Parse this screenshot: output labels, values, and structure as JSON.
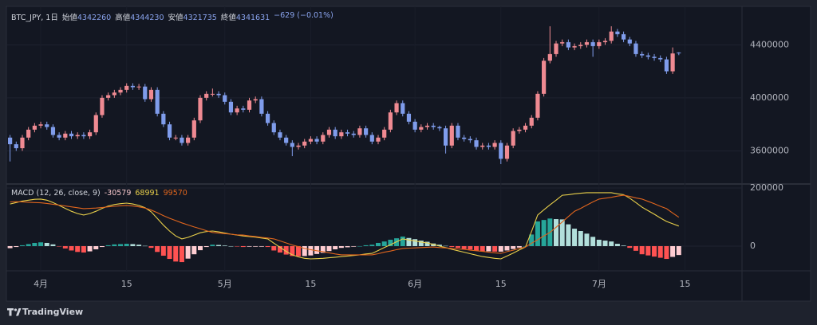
{
  "chart_data": [
    {
      "type": "candlestick",
      "symbol": "BTC_JPY, 1日",
      "ohlc_labels": [
        "始値",
        "高値",
        "安値",
        "終値"
      ],
      "change_text": "−629 (−0.01%)",
      "up_color": "#ef8a92",
      "down_color": "#7f9ceb",
      "grid": true,
      "x": [
        -5,
        -4,
        -3,
        -2,
        -1,
        0,
        1,
        2,
        3,
        4,
        5,
        6,
        7,
        8,
        9,
        10,
        11,
        12,
        13,
        14,
        15,
        16,
        17,
        18,
        19,
        20,
        21,
        22,
        23,
        24,
        25,
        26,
        27,
        28,
        29,
        30,
        31,
        32,
        33,
        34,
        35,
        36,
        37,
        38,
        39,
        40,
        41,
        42,
        43,
        44,
        45,
        46,
        47,
        48,
        49,
        50,
        51,
        52,
        53,
        54,
        55,
        56,
        57,
        58,
        59,
        60,
        61,
        62,
        63,
        64,
        65,
        66,
        67,
        68,
        69,
        70,
        71,
        72,
        73,
        74,
        75,
        76,
        77,
        78,
        79,
        80,
        81,
        82,
        83,
        84,
        85,
        86,
        87,
        88,
        89,
        90,
        91,
        92,
        93,
        94,
        95,
        96,
        97,
        98,
        99,
        100,
        101,
        102,
        103,
        104
      ],
      "xlim": [
        -5.6,
        114.3
      ],
      "xticks": [
        {
          "value": 0,
          "label": "4月"
        },
        {
          "value": 14,
          "label": "15"
        },
        {
          "value": 30,
          "label": "5月"
        },
        {
          "value": 44,
          "label": "15"
        },
        {
          "value": 61,
          "label": "6月"
        },
        {
          "value": 75,
          "label": "15"
        },
        {
          "value": 91,
          "label": "7月"
        },
        {
          "value": 105,
          "label": "15"
        }
      ],
      "ylim": [
        3350000,
        4690000
      ],
      "yticks": [
        3600000,
        4000000,
        4400000
      ],
      "open": [
        3700000,
        3650000,
        3620000,
        3700000,
        3760000,
        3790000,
        3800000,
        3780000,
        3720000,
        3700000,
        3730000,
        3710000,
        3720000,
        3710000,
        3740000,
        3870000,
        4000000,
        4020000,
        4040000,
        4060000,
        4090000,
        4080000,
        4085000,
        3990000,
        4060000,
        3880000,
        3800000,
        3700000,
        3700000,
        3660000,
        3700000,
        3830000,
        4000000,
        4030000,
        4030000,
        4020000,
        3970000,
        3890000,
        3920000,
        3910000,
        3980000,
        3990000,
        3880000,
        3810000,
        3740000,
        3700000,
        3660000,
        3630000,
        3640000,
        3670000,
        3690000,
        3670000,
        3720000,
        3760000,
        3710000,
        3740000,
        3730000,
        3720000,
        3770000,
        3720000,
        3670000,
        3700000,
        3760000,
        3890000,
        3960000,
        3880000,
        3820000,
        3760000,
        3780000,
        3790000,
        3780000,
        3770000,
        3640000,
        3790000,
        3700000,
        3690000,
        3680000,
        3630000,
        3640000,
        3630000,
        3660000,
        3540000,
        3640000,
        3750000,
        3760000,
        3790000,
        3850000,
        4030000,
        4280000,
        4330000,
        4410000,
        4420000,
        4380000,
        4390000,
        4400000,
        4420000,
        4390000,
        4420000,
        4430000,
        4500000,
        4480000,
        4440000,
        4410000,
        4330000,
        4320000,
        4310000,
        4300000,
        4290000,
        4200000,
        4342260
      ],
      "high": [
        3720000,
        3670000,
        3720000,
        3780000,
        3810000,
        3820000,
        3820000,
        3800000,
        3740000,
        3750000,
        3750000,
        3740000,
        3740000,
        3760000,
        3890000,
        4020000,
        4040000,
        4060000,
        4080000,
        4110000,
        4110000,
        4105000,
        4105000,
        4080000,
        4080000,
        3900000,
        3820000,
        3720000,
        3720000,
        3720000,
        3850000,
        4020000,
        4050000,
        4070000,
        4050000,
        4040000,
        3990000,
        3940000,
        3940000,
        4000000,
        4010000,
        4010000,
        3900000,
        3830000,
        3760000,
        3720000,
        3680000,
        3660000,
        3690000,
        3710000,
        3710000,
        3740000,
        3780000,
        3780000,
        3760000,
        3760000,
        3750000,
        3790000,
        3790000,
        3740000,
        3720000,
        3780000,
        3910000,
        3980000,
        3980000,
        3900000,
        3840000,
        3800000,
        3810000,
        3810000,
        3790000,
        3790000,
        3810000,
        3810000,
        3720000,
        3710000,
        3700000,
        3660000,
        3660000,
        3680000,
        3680000,
        3660000,
        3770000,
        3780000,
        3810000,
        3870000,
        4050000,
        4300000,
        4540000,
        4430000,
        4440000,
        4440000,
        4410000,
        4420000,
        4440000,
        4440000,
        4440000,
        4450000,
        4540000,
        4520000,
        4500000,
        4460000,
        4430000,
        4350000,
        4340000,
        4330000,
        4320000,
        4310000,
        4380000,
        4344230
      ],
      "low": [
        3520000,
        3600000,
        3600000,
        3680000,
        3740000,
        3770000,
        3760000,
        3700000,
        3680000,
        3680000,
        3690000,
        3690000,
        3690000,
        3690000,
        3720000,
        3850000,
        3980000,
        4000000,
        4020000,
        4040000,
        4060000,
        4060000,
        3970000,
        3970000,
        3860000,
        3780000,
        3680000,
        3680000,
        3640000,
        3640000,
        3680000,
        3810000,
        3980000,
        4010000,
        4000000,
        3950000,
        3870000,
        3870000,
        3890000,
        3890000,
        3960000,
        3860000,
        3790000,
        3720000,
        3680000,
        3640000,
        3560000,
        3610000,
        3620000,
        3650000,
        3650000,
        3650000,
        3700000,
        3690000,
        3690000,
        3710000,
        3700000,
        3700000,
        3700000,
        3650000,
        3650000,
        3680000,
        3740000,
        3870000,
        3860000,
        3800000,
        3740000,
        3740000,
        3760000,
        3760000,
        3750000,
        3580000,
        3620000,
        3680000,
        3670000,
        3660000,
        3610000,
        3610000,
        3610000,
        3610000,
        3500000,
        3520000,
        3620000,
        3730000,
        3740000,
        3770000,
        3830000,
        4010000,
        4260000,
        4310000,
        4390000,
        4360000,
        4360000,
        4370000,
        4380000,
        4310000,
        4370000,
        4400000,
        4410000,
        4460000,
        4420000,
        4390000,
        4310000,
        4300000,
        4290000,
        4280000,
        4270000,
        4180000,
        4180000,
        4321735
      ],
      "close": [
        3650000,
        3620000,
        3700000,
        3760000,
        3790000,
        3800000,
        3780000,
        3720000,
        3700000,
        3730000,
        3710000,
        3720000,
        3710000,
        3740000,
        3870000,
        4000000,
        4020000,
        4040000,
        4060000,
        4090000,
        4080000,
        4085000,
        3990000,
        4060000,
        3880000,
        3800000,
        3700000,
        3700000,
        3660000,
        3700000,
        3830000,
        4000000,
        4030000,
        4030000,
        4020000,
        3970000,
        3890000,
        3920000,
        3910000,
        3980000,
        3990000,
        3880000,
        3810000,
        3740000,
        3700000,
        3660000,
        3630000,
        3640000,
        3670000,
        3690000,
        3670000,
        3720000,
        3760000,
        3710000,
        3740000,
        3730000,
        3720000,
        3770000,
        3720000,
        3670000,
        3700000,
        3760000,
        3890000,
        3960000,
        3880000,
        3820000,
        3760000,
        3780000,
        3790000,
        3780000,
        3770000,
        3640000,
        3790000,
        3700000,
        3690000,
        3680000,
        3630000,
        3640000,
        3630000,
        3660000,
        3540000,
        3640000,
        3750000,
        3760000,
        3790000,
        3850000,
        4030000,
        4280000,
        4330000,
        4410000,
        4420000,
        4380000,
        4390000,
        4400000,
        4420000,
        4390000,
        4420000,
        4430000,
        4500000,
        4480000,
        4440000,
        4410000,
        4330000,
        4320000,
        4310000,
        4300000,
        4290000,
        4200000,
        4335000,
        4341631
      ]
    },
    {
      "type": "macd",
      "title": "MACD (12, 26, close, 9)",
      "ylim": [
        -85000,
        211000
      ],
      "yticks": [
        0,
        200000
      ],
      "histogram": {
        "colors": [
          "#26a69a",
          "#b2dfdb",
          "#ff5252",
          "#ffcdd2"
        ],
        "values": [
          -7000,
          -3000,
          3000,
          7000,
          11000,
          13000,
          11000,
          6000,
          -1000,
          -8000,
          -15000,
          -20000,
          -22000,
          -18000,
          -11000,
          -3000,
          3000,
          6000,
          7000,
          8000,
          7000,
          5000,
          1000,
          -6000,
          -20000,
          -33000,
          -44000,
          -53000,
          -55000,
          -43000,
          -28000,
          -14000,
          -3000,
          5000,
          4000,
          2000,
          0,
          -1000,
          -3000,
          -2000,
          -2000,
          -2000,
          -3000,
          -15000,
          -22000,
          -29000,
          -34000,
          -35000,
          -34000,
          -32000,
          -27000,
          -23000,
          -17000,
          -11000,
          -6000,
          -4000,
          -2000,
          0,
          3000,
          5000,
          11000,
          16000,
          22000,
          27000,
          33000,
          28000,
          24000,
          19000,
          15000,
          9000,
          5000,
          1000,
          -3000,
          -6000,
          -10000,
          -12000,
          -15000,
          -18000,
          -18000,
          -19000,
          -19000,
          -15000,
          -10000,
          -5000,
          0,
          40000,
          85000,
          90000,
          95000,
          93000,
          92000,
          75000,
          60000,
          52000,
          43000,
          32000,
          22000,
          19000,
          16000,
          8000,
          2000,
          -6000,
          -16000,
          -28000,
          -32000,
          -36000,
          -40000,
          -44000,
          -37000,
          -30579
        ]
      },
      "series": [
        {
          "name": "MACD",
          "color": "#e8cf4a",
          "values": [
            145000,
            150000,
            155000,
            158000,
            161000,
            162000,
            158000,
            150000,
            140000,
            130000,
            120000,
            112000,
            107000,
            112000,
            120000,
            130000,
            138000,
            143000,
            146000,
            148000,
            145000,
            140000,
            132000,
            118000,
            95000,
            72000,
            52000,
            35000,
            25000,
            30000,
            38000,
            46000,
            50000,
            52000,
            49000,
            45000,
            41000,
            38000,
            35000,
            33000,
            31000,
            28000,
            25000,
            10000,
            -4000,
            -18000,
            -30000,
            -37000,
            -42000,
            -44000,
            -43000,
            -42000,
            -40000,
            -38000,
            -36000,
            -34000,
            -32000,
            -30000,
            -27000,
            -25000,
            -15000,
            -5000,
            5000,
            15000,
            25000,
            21000,
            18000,
            14000,
            11000,
            6000,
            0,
            -5000,
            -11000,
            -16000,
            -21000,
            -26000,
            -31000,
            -36000,
            -39000,
            -42000,
            -44000,
            -34000,
            -24000,
            -13000,
            -3000,
            50000,
            107000,
            125000,
            142000,
            158000,
            175000,
            177000,
            180000,
            182000,
            184000,
            184000,
            184000,
            184000,
            184000,
            180000,
            177000,
            165000,
            150000,
            134000,
            122000,
            110000,
            97000,
            85000,
            77000,
            68991
          ]
        },
        {
          "name": "Signal",
          "color": "#e0651d",
          "values": [
            152000,
            153000,
            152000,
            151000,
            150000,
            149000,
            147000,
            144000,
            141000,
            138000,
            135000,
            132000,
            129000,
            130000,
            131000,
            133000,
            135000,
            137000,
            139000,
            140000,
            138000,
            135000,
            131000,
            124000,
            115000,
            105000,
            96000,
            88000,
            80000,
            73000,
            66000,
            60000,
            53000,
            47000,
            45000,
            43000,
            41000,
            39000,
            38000,
            35000,
            33000,
            30000,
            28000,
            25000,
            18000,
            11000,
            4000,
            -2000,
            -8000,
            -12000,
            -16000,
            -19000,
            -23000,
            -27000,
            -30000,
            -30000,
            -30000,
            -30000,
            -30000,
            -30000,
            -26000,
            -21000,
            -17000,
            -12000,
            -8000,
            -7000,
            -6000,
            -5000,
            -4000,
            -3000,
            -5000,
            -6000,
            -8000,
            -10000,
            -11000,
            -14000,
            -16000,
            -18000,
            -21000,
            -23000,
            -25000,
            -19000,
            -14000,
            -8000,
            -3000,
            10000,
            22000,
            35000,
            47000,
            65000,
            83000,
            102000,
            120000,
            130000,
            141000,
            152000,
            162000,
            165000,
            168000,
            172000,
            175000,
            171000,
            166000,
            162000,
            154000,
            146000,
            137000,
            129000,
            114000,
            99570
          ]
        }
      ]
    }
  ],
  "branding": "TradingView"
}
